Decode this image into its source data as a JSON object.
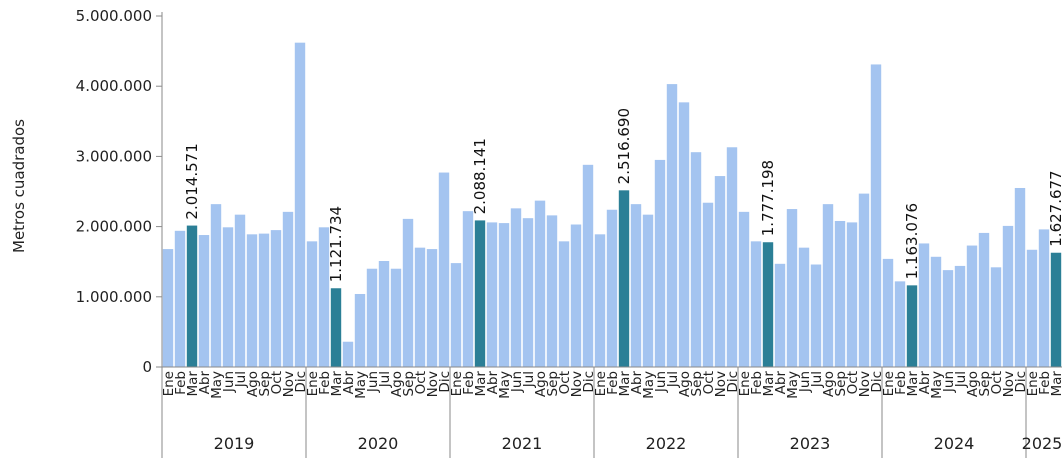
{
  "chart_data": {
    "type": "bar",
    "title": "",
    "xlabel": "",
    "ylabel": "Metros cuadrados",
    "ylim": [
      0,
      5000000
    ],
    "yticks": [
      0,
      1000000,
      2000000,
      3000000,
      4000000,
      5000000
    ],
    "ytick_labels": [
      "0",
      "1.000.000",
      "2.000.000",
      "3.000.000",
      "4.000.000",
      "5.000.000"
    ],
    "grid": false,
    "legend": "none",
    "colors": {
      "default": "#a4c4f0",
      "highlight": "#2b7f96"
    },
    "years": [
      {
        "label": "2019",
        "months": [
          "Ene",
          "Feb",
          "Mar",
          "Abr",
          "May",
          "Jun",
          "Jul",
          "Ago",
          "Sep",
          "Oct",
          "Nov",
          "Dic"
        ]
      },
      {
        "label": "2020",
        "months": [
          "Ene",
          "Feb",
          "Mar",
          "Abr",
          "May",
          "Jun",
          "Jul",
          "Ago",
          "Sep",
          "Oct",
          "Nov",
          "Dic"
        ]
      },
      {
        "label": "2021",
        "months": [
          "Ene",
          "Feb",
          "Mar",
          "Abr",
          "May",
          "Jun",
          "Jul",
          "Ago",
          "Sep",
          "Oct",
          "Nov",
          "Dic"
        ]
      },
      {
        "label": "2022",
        "months": [
          "Ene",
          "Feb",
          "Mar",
          "Abr",
          "May",
          "Jun",
          "Jul",
          "Ago",
          "Sep",
          "Oct",
          "Nov",
          "Dic"
        ]
      },
      {
        "label": "2023",
        "months": [
          "Ene",
          "Feb",
          "Mar",
          "Abr",
          "May",
          "Jun",
          "Jul",
          "Ago",
          "Sep",
          "Oct",
          "Nov",
          "Dic"
        ]
      },
      {
        "label": "2024",
        "months": [
          "Ene",
          "Feb",
          "Mar",
          "Abr",
          "May",
          "Jun",
          "Jul",
          "Ago",
          "Sep",
          "Oct",
          "Nov",
          "Dic"
        ]
      },
      {
        "label": "2025",
        "months": [
          "Ene",
          "Feb",
          "Mar"
        ]
      }
    ],
    "values": [
      1680000,
      1940000,
      2014571,
      1880000,
      2320000,
      1990000,
      2170000,
      1890000,
      1900000,
      1950000,
      2210000,
      4620000,
      1790000,
      1990000,
      1121734,
      360000,
      1040000,
      1400000,
      1510000,
      1400000,
      2110000,
      1700000,
      1680000,
      2770000,
      1480000,
      2220000,
      2088141,
      2060000,
      2050000,
      2260000,
      2120000,
      2370000,
      2160000,
      1790000,
      2030000,
      2880000,
      1890000,
      2240000,
      2516690,
      2320000,
      2170000,
      2950000,
      4030000,
      3770000,
      3060000,
      2340000,
      2720000,
      3130000,
      2210000,
      1790000,
      1777198,
      1470000,
      2250000,
      1700000,
      1460000,
      2320000,
      2080000,
      2060000,
      2470000,
      4310000,
      1540000,
      1220000,
      1163076,
      1760000,
      1570000,
      1380000,
      1440000,
      1730000,
      1910000,
      1420000,
      2010000,
      2550000,
      1670000,
      1960000,
      1627677
    ],
    "highlighted": [
      {
        "index": 2,
        "label": "2.014.571"
      },
      {
        "index": 14,
        "label": "1.121.734"
      },
      {
        "index": 26,
        "label": "2.088.141"
      },
      {
        "index": 38,
        "label": "2.516.690"
      },
      {
        "index": 50,
        "label": "1.777.198"
      },
      {
        "index": 62,
        "label": "1.163.076"
      },
      {
        "index": 74,
        "label": "1.627.677"
      }
    ]
  }
}
